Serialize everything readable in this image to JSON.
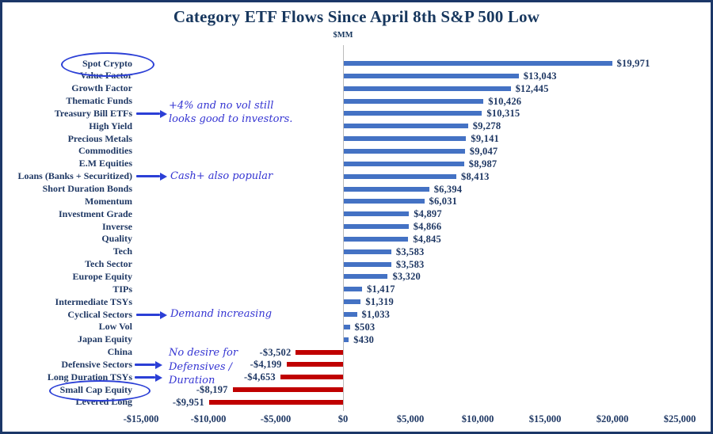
{
  "chart": {
    "title": "Category ETF Flows Since April 8th S&P 500 Low",
    "units_label": "$MM"
  },
  "chart_data": {
    "type": "bar",
    "orientation": "horizontal",
    "title": "Category ETF Flows Since April 8th S&P 500 Low",
    "units": "$MM",
    "xlim": [
      -15000,
      25000
    ],
    "grid": false,
    "positive_color": "#4472C4",
    "negative_color": "#C00000",
    "x_ticks": [
      {
        "value": -15000,
        "label": "-$15,000"
      },
      {
        "value": -10000,
        "label": "-$10,000"
      },
      {
        "value": -5000,
        "label": "-$5,000"
      },
      {
        "value": 0,
        "label": "$0"
      },
      {
        "value": 5000,
        "label": "$5,000"
      },
      {
        "value": 10000,
        "label": "$10,000"
      },
      {
        "value": 15000,
        "label": "$15,000"
      },
      {
        "value": 20000,
        "label": "$20,000"
      },
      {
        "value": 25000,
        "label": "$25,000"
      }
    ],
    "categories": [
      {
        "label": "Spot Crypto",
        "value": 19971,
        "value_label": "$19,971"
      },
      {
        "label": "Value Factor",
        "value": 13043,
        "value_label": "$13,043"
      },
      {
        "label": "Growth Factor",
        "value": 12445,
        "value_label": "$12,445"
      },
      {
        "label": "Thematic Funds",
        "value": 10426,
        "value_label": "$10,426"
      },
      {
        "label": "Treasury Bill ETFs",
        "value": 10315,
        "value_label": "$10,315"
      },
      {
        "label": "High Yield",
        "value": 9278,
        "value_label": "$9,278"
      },
      {
        "label": "Precious Metals",
        "value": 9141,
        "value_label": "$9,141"
      },
      {
        "label": "Commodities",
        "value": 9047,
        "value_label": "$9,047"
      },
      {
        "label": "E.M Equities",
        "value": 8987,
        "value_label": "$8,987"
      },
      {
        "label": "Loans (Banks + Securitized)",
        "value": 8413,
        "value_label": "$8,413"
      },
      {
        "label": "Short Duration Bonds",
        "value": 6394,
        "value_label": "$6,394"
      },
      {
        "label": "Momentum",
        "value": 6031,
        "value_label": "$6,031"
      },
      {
        "label": "Investment Grade",
        "value": 4897,
        "value_label": "$4,897"
      },
      {
        "label": "Inverse",
        "value": 4866,
        "value_label": "$4,866"
      },
      {
        "label": "Quality",
        "value": 4845,
        "value_label": "$4,845"
      },
      {
        "label": "Tech",
        "value": 3583,
        "value_label": "$3,583"
      },
      {
        "label": "Tech Sector",
        "value": 3583,
        "value_label": "$3,583"
      },
      {
        "label": "Europe Equity",
        "value": 3320,
        "value_label": "$3,320"
      },
      {
        "label": "TIPs",
        "value": 1417,
        "value_label": "$1,417"
      },
      {
        "label": "Intermediate TSYs",
        "value": 1319,
        "value_label": "$1,319"
      },
      {
        "label": "Cyclical Sectors",
        "value": 1033,
        "value_label": "$1,033"
      },
      {
        "label": "Low Vol",
        "value": 503,
        "value_label": "$503"
      },
      {
        "label": "Japan Equity",
        "value": 430,
        "value_label": "$430"
      },
      {
        "label": "China",
        "value": -3502,
        "value_label": "-$3,502"
      },
      {
        "label": "Defensive Sectors",
        "value": -4199,
        "value_label": "-$4,199"
      },
      {
        "label": "Long Duration TSYs",
        "value": -4653,
        "value_label": "-$4,653"
      },
      {
        "label": "Small Cap Equity",
        "value": -8197,
        "value_label": "-$8,197"
      },
      {
        "label": "Levered Long",
        "value": -9951,
        "value_label": "-$9,951"
      }
    ],
    "annotations": [
      {
        "target": "Treasury Bill ETFs",
        "lines": [
          "+4% and no vol still",
          "looks good to investors."
        ]
      },
      {
        "target": "Loans (Banks + Securitized)",
        "lines": [
          "Cash+ also popular"
        ]
      },
      {
        "target": "Cyclical Sectors",
        "lines": [
          "Demand increasing"
        ]
      },
      {
        "target": "Defensive Sectors / Long Duration TSYs",
        "lines": [
          "No desire for",
          "Defensives /",
          "Duration"
        ]
      }
    ],
    "highlighted_categories": [
      "Spot Crypto",
      "Small Cap Equity"
    ]
  }
}
